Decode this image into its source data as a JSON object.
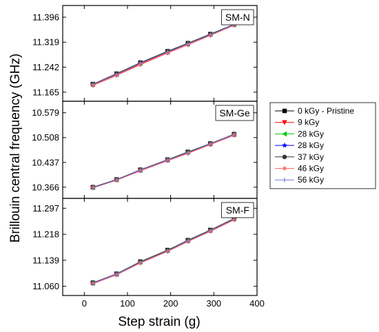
{
  "chart_data": {
    "type": "line",
    "xlabel": "Step strain (g)",
    "ylabel": "Brillouin central frequency (GHz)",
    "xlim": [
      -50,
      400
    ],
    "xticks": [
      "0",
      "100",
      "200",
      "300",
      "400"
    ],
    "x": [
      20,
      75,
      130,
      193,
      240,
      292,
      347
    ],
    "legend": {
      "placement": "right",
      "entries": [
        {
          "label": "0 kGy - Pristine",
          "color": "#000000",
          "marker": "square"
        },
        {
          "label": "9 kGy",
          "color": "#ff0000",
          "marker": "triangle-down"
        },
        {
          "label": "28 kGy",
          "color": "#00cc00",
          "marker": "triangle-left"
        },
        {
          "label": "28 kGy",
          "color": "#0000ff",
          "marker": "star"
        },
        {
          "label": "37 kGy",
          "color": "#333333",
          "marker": "circle"
        },
        {
          "label": "46 kGy",
          "color": "#ff6666",
          "marker": "asterisk"
        },
        {
          "label": "56 kGy",
          "color": "#7777dd",
          "marker": "bar"
        }
      ]
    },
    "panels": [
      {
        "tag": "SM-N",
        "ylim": [
          11.137,
          11.432
        ],
        "yticks": [
          "11.165",
          "11.242",
          "11.319",
          "11.396"
        ],
        "series": [
          {
            "values": [
              11.19,
              11.222,
              11.256,
              11.291,
              11.316,
              11.344,
              11.374
            ]
          },
          {
            "values": [
              11.186,
              11.217,
              11.25,
              11.286,
              11.311,
              11.34,
              11.371
            ]
          },
          {
            "values": [
              11.189,
              11.22,
              11.254,
              11.289,
              11.314,
              11.343,
              11.373
            ]
          },
          {
            "values": [
              11.188,
              11.219,
              11.253,
              11.288,
              11.313,
              11.342,
              11.372
            ]
          },
          {
            "values": [
              11.19,
              11.221,
              11.255,
              11.29,
              11.315,
              11.343,
              11.374
            ]
          },
          {
            "values": [
              11.187,
              11.218,
              11.252,
              11.287,
              11.312,
              11.341,
              11.371
            ]
          },
          {
            "values": [
              11.189,
              11.22,
              11.254,
              11.289,
              11.314,
              11.342,
              11.373
            ]
          }
        ]
      },
      {
        "tag": "SM-Ge",
        "ylim": [
          10.334,
          10.612
        ],
        "yticks": [
          "10.366",
          "10.437",
          "10.508",
          "10.579"
        ],
        "series": [
          {
            "values": [
              10.366,
              10.388,
              10.416,
              10.445,
              10.467,
              10.491,
              10.518
            ]
          },
          {
            "values": [
              10.364,
              10.386,
              10.413,
              10.442,
              10.463,
              10.488,
              10.515
            ]
          },
          {
            "values": [
              10.365,
              10.387,
              10.415,
              10.444,
              10.466,
              10.49,
              10.517
            ]
          },
          {
            "values": [
              10.366,
              10.387,
              10.414,
              10.443,
              10.465,
              10.489,
              10.516
            ]
          },
          {
            "values": [
              10.366,
              10.388,
              10.415,
              10.444,
              10.466,
              10.49,
              10.517
            ]
          },
          {
            "values": [
              10.365,
              10.386,
              10.414,
              10.443,
              10.464,
              10.489,
              10.516
            ]
          },
          {
            "values": [
              10.365,
              10.387,
              10.415,
              10.444,
              10.465,
              10.49,
              10.517
            ]
          }
        ]
      },
      {
        "tag": "SM-F",
        "ylim": [
          11.032,
          11.327
        ],
        "yticks": [
          "11.060",
          "11.139",
          "11.218",
          "11.297"
        ],
        "series": [
          {
            "values": [
              11.071,
              11.098,
              11.135,
              11.17,
              11.2,
              11.231,
              11.266
            ]
          },
          {
            "values": [
              11.068,
              11.095,
              11.131,
              11.166,
              11.196,
              11.227,
              11.262
            ]
          },
          {
            "values": [
              11.07,
              11.097,
              11.134,
              11.169,
              11.199,
              11.23,
              11.265
            ]
          },
          {
            "values": [
              11.069,
              11.096,
              11.133,
              11.168,
              11.198,
              11.229,
              11.264
            ]
          },
          {
            "values": [
              11.071,
              11.097,
              11.134,
              11.169,
              11.199,
              11.23,
              11.265
            ]
          },
          {
            "values": [
              11.069,
              11.096,
              11.132,
              11.167,
              11.197,
              11.228,
              11.263
            ]
          },
          {
            "values": [
              11.07,
              11.097,
              11.133,
              11.168,
              11.198,
              11.229,
              11.264
            ]
          }
        ]
      }
    ]
  }
}
